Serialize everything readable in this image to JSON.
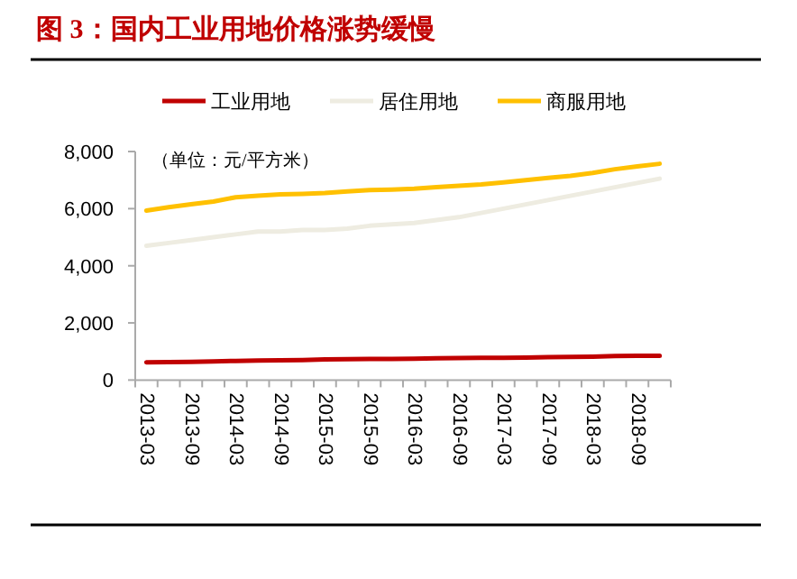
{
  "chart_data": {
    "type": "line",
    "title": "图 3：国内工业用地价格涨势缓慢",
    "annotations": [
      "（单位：元/平方米）"
    ],
    "categories": [
      "2013-03",
      null,
      "2013-09",
      null,
      "2014-03",
      null,
      "2014-09",
      null,
      "2015-03",
      null,
      "2015-09",
      null,
      "2016-03",
      null,
      "2016-09",
      null,
      "2017-03",
      null,
      "2017-09",
      null,
      "2018-03",
      null,
      "2018-09",
      null
    ],
    "series": [
      {
        "name": "工业用地",
        "color": "#c00000",
        "values": [
          620,
          630,
          640,
          650,
          670,
          680,
          690,
          700,
          720,
          730,
          740,
          740,
          750,
          760,
          770,
          780,
          780,
          790,
          800,
          810,
          820,
          840,
          850,
          850
        ]
      },
      {
        "name": "居住用地",
        "color": "#eeece1",
        "values": [
          4700,
          4800,
          4900,
          5000,
          5100,
          5200,
          5200,
          5250,
          5250,
          5300,
          5400,
          5450,
          5500,
          5600,
          5700,
          5850,
          6000,
          6150,
          6300,
          6450,
          6600,
          6750,
          6900,
          7050
        ]
      },
      {
        "name": "商服用地",
        "color": "#ffc000",
        "values": [
          5930,
          6050,
          6150,
          6250,
          6400,
          6450,
          6500,
          6520,
          6550,
          6600,
          6650,
          6670,
          6700,
          6750,
          6800,
          6850,
          6920,
          7000,
          7080,
          7150,
          7250,
          7380,
          7480,
          7570
        ]
      }
    ],
    "ylim": [
      0,
      8000
    ],
    "yticks": [
      0,
      {
        "value": 2000,
        "label": "2,000"
      },
      {
        "value": 4000,
        "label": "4,000"
      },
      {
        "value": 6000,
        "label": "6,000"
      },
      {
        "value": 8000,
        "label": "8,000"
      }
    ],
    "legend": "top",
    "grid": false
  }
}
